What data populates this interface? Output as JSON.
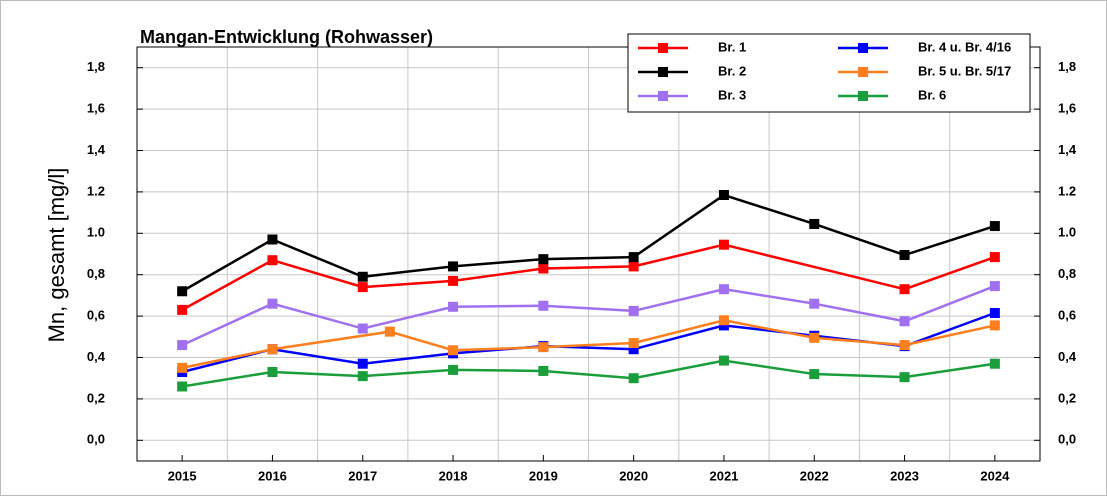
{
  "chart_data": {
    "type": "line",
    "title": "Mangan-Entwicklung (Rohwasser)",
    "y_label": "Mn, gesamt  [mg/l]",
    "x": [
      2015,
      2016,
      2017,
      2018,
      2019,
      2020,
      2021,
      2022,
      2023,
      2024
    ],
    "xlim": [
      2014.5,
      2024.5
    ],
    "xticks": [
      2015,
      2016,
      2017,
      2018,
      2019,
      2020,
      2021,
      2022,
      2023,
      2024
    ],
    "ylim": [
      -0.1,
      1.9
    ],
    "yticks": [
      {
        "value": 0,
        "label": "0,0"
      },
      {
        "value": 0.2,
        "label": "0,2"
      },
      {
        "value": 0.4,
        "label": "0,4"
      },
      {
        "value": 0.6,
        "label": "0,6"
      },
      {
        "value": 0.8,
        "label": "0,8"
      },
      {
        "value": 1.0,
        "label": "1.0"
      },
      {
        "value": 1.2,
        "label": "1.2"
      },
      {
        "value": 1.4,
        "label": "1,4"
      },
      {
        "value": 1.6,
        "label": "1,6"
      },
      {
        "value": 1.8,
        "label": "1,8"
      }
    ],
    "y2lim": [
      -0.1,
      1.9
    ],
    "y2ticks": [
      {
        "value": 0,
        "label": "0,0"
      },
      {
        "value": 0.2,
        "label": "0,2"
      },
      {
        "value": 0.4,
        "label": "0,4"
      },
      {
        "value": 0.6,
        "label": "0,6"
      },
      {
        "value": 0.8,
        "label": "0,8"
      },
      {
        "value": 1.0,
        "label": "1.0"
      },
      {
        "value": 1.2,
        "label": "1.2"
      },
      {
        "value": 1.4,
        "label": "1,4"
      },
      {
        "value": 1.6,
        "label": "1,6"
      },
      {
        "value": 1.8,
        "label": "1,8"
      }
    ],
    "grid": true,
    "legend": "upper right",
    "series": [
      {
        "name": "Br. 1",
        "color": "#ff0000",
        "x": [
          2015,
          2016,
          2017,
          2018,
          2019,
          2020,
          2021,
          2023,
          2024
        ],
        "values": [
          0.63,
          0.87,
          0.74,
          0.77,
          0.83,
          0.84,
          0.945,
          0.73,
          0.885
        ]
      },
      {
        "name": "Br. 2",
        "color": "#000000",
        "values": [
          0.72,
          0.97,
          0.79,
          0.84,
          0.875,
          0.885,
          1.185,
          1.045,
          0.895,
          1.035
        ]
      },
      {
        "name": "Br. 3",
        "color": "#a070f0",
        "values": [
          0.46,
          0.66,
          0.54,
          0.645,
          0.65,
          0.625,
          0.73,
          0.66,
          0.575,
          0.745
        ]
      },
      {
        "name": "Br. 4 u. Br. 4/16",
        "color": "#0000ff",
        "values": [
          0.33,
          0.44,
          0.37,
          0.42,
          0.455,
          0.44,
          0.555,
          0.505,
          0.455,
          0.615
        ]
      },
      {
        "name": "Br. 5 u. Br. 5/17",
        "color": "#ff7f1e",
        "x": [
          2015,
          2016,
          2017.3,
          2018,
          2019,
          2020,
          2021,
          2022,
          2023,
          2024
        ],
        "values": [
          0.35,
          0.44,
          0.525,
          0.435,
          0.45,
          0.47,
          0.58,
          0.495,
          0.46,
          0.555
        ]
      },
      {
        "name": "Br. 6",
        "color": "#1a9e3c",
        "values": [
          0.26,
          0.33,
          0.31,
          0.34,
          0.335,
          0.3,
          0.385,
          0.32,
          0.305,
          0.37
        ]
      }
    ]
  }
}
